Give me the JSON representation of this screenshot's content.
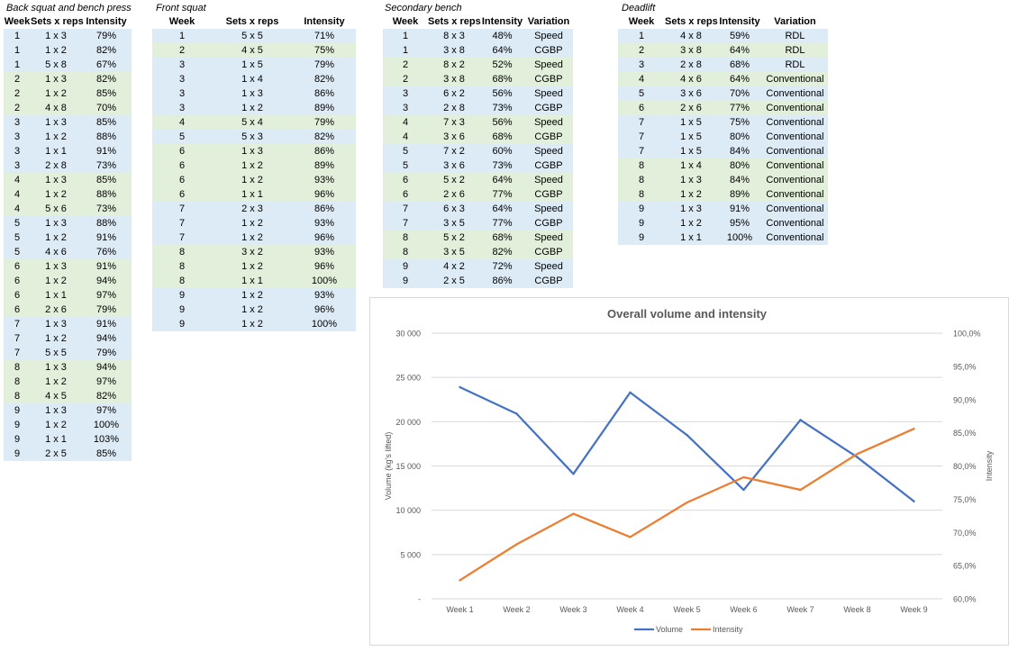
{
  "tables": {
    "back_squat": {
      "title": "Back squat and bench press",
      "headers": [
        "Week",
        "Sets x reps",
        "Intensity"
      ],
      "rows": [
        [
          "1",
          "1 x 3",
          "79%"
        ],
        [
          "1",
          "1 x 2",
          "82%"
        ],
        [
          "1",
          "5 x 8",
          "67%"
        ],
        [
          "2",
          "1 x 3",
          "82%"
        ],
        [
          "2",
          "1 x 2",
          "85%"
        ],
        [
          "2",
          "4 x 8",
          "70%"
        ],
        [
          "3",
          "1 x 3",
          "85%"
        ],
        [
          "3",
          "1 x 2",
          "88%"
        ],
        [
          "3",
          "1 x 1",
          "91%"
        ],
        [
          "3",
          "2 x 8",
          "73%"
        ],
        [
          "4",
          "1 x 3",
          "85%"
        ],
        [
          "4",
          "1 x 2",
          "88%"
        ],
        [
          "4",
          "5 x 6",
          "73%"
        ],
        [
          "5",
          "1 x 3",
          "88%"
        ],
        [
          "5",
          "1 x 2",
          "91%"
        ],
        [
          "5",
          "4 x 6",
          "76%"
        ],
        [
          "6",
          "1 x 3",
          "91%"
        ],
        [
          "6",
          "1 x 2",
          "94%"
        ],
        [
          "6",
          "1 x 1",
          "97%"
        ],
        [
          "6",
          "2 x 6",
          "79%"
        ],
        [
          "7",
          "1 x 3",
          "91%"
        ],
        [
          "7",
          "1 x 2",
          "94%"
        ],
        [
          "7",
          "5 x 5",
          "79%"
        ],
        [
          "8",
          "1 x 3",
          "94%"
        ],
        [
          "8",
          "1 x 2",
          "97%"
        ],
        [
          "8",
          "4 x 5",
          "82%"
        ],
        [
          "9",
          "1 x 3",
          "97%"
        ],
        [
          "9",
          "1 x 2",
          "100%"
        ],
        [
          "9",
          "1 x 1",
          "103%"
        ],
        [
          "9",
          "2 x 5",
          "85%"
        ]
      ]
    },
    "front_squat": {
      "title": "Front squat",
      "headers": [
        "Week",
        "Sets x reps",
        "Intensity"
      ],
      "rows": [
        [
          "1",
          "5 x 5",
          "71%"
        ],
        [
          "2",
          "4 x 5",
          "75%"
        ],
        [
          "3",
          "1 x 5",
          "79%"
        ],
        [
          "3",
          "1 x 4",
          "82%"
        ],
        [
          "3",
          "1 x 3",
          "86%"
        ],
        [
          "3",
          "1 x 2",
          "89%"
        ],
        [
          "4",
          "5 x 4",
          "79%"
        ],
        [
          "5",
          "5 x 3",
          "82%"
        ],
        [
          "6",
          "1 x 3",
          "86%"
        ],
        [
          "6",
          "1 x 2",
          "89%"
        ],
        [
          "6",
          "1 x 2",
          "93%"
        ],
        [
          "6",
          "1 x 1",
          "96%"
        ],
        [
          "7",
          "2 x 3",
          "86%"
        ],
        [
          "7",
          "1 x 2",
          "93%"
        ],
        [
          "7",
          "1 x 2",
          "96%"
        ],
        [
          "8",
          "3 x 2",
          "93%"
        ],
        [
          "8",
          "1 x 2",
          "96%"
        ],
        [
          "8",
          "1 x 1",
          "100%"
        ],
        [
          "9",
          "1 x 2",
          "93%"
        ],
        [
          "9",
          "1 x 2",
          "96%"
        ],
        [
          "9",
          "1 x 2",
          "100%"
        ]
      ]
    },
    "secondary_bench": {
      "title": "Secondary bench",
      "headers": [
        "Week",
        "Sets x reps",
        "Intensity",
        "Variation"
      ],
      "rows": [
        [
          "1",
          "8 x 3",
          "48%",
          "Speed"
        ],
        [
          "1",
          "3 x 8",
          "64%",
          "CGBP"
        ],
        [
          "2",
          "8 x 2",
          "52%",
          "Speed"
        ],
        [
          "2",
          "3 x 8",
          "68%",
          "CGBP"
        ],
        [
          "3",
          "6 x 2",
          "56%",
          "Speed"
        ],
        [
          "3",
          "2 x 8",
          "73%",
          "CGBP"
        ],
        [
          "4",
          "7 x 3",
          "56%",
          "Speed"
        ],
        [
          "4",
          "3 x 6",
          "68%",
          "CGBP"
        ],
        [
          "5",
          "7 x 2",
          "60%",
          "Speed"
        ],
        [
          "5",
          "3 x 6",
          "73%",
          "CGBP"
        ],
        [
          "6",
          "5 x 2",
          "64%",
          "Speed"
        ],
        [
          "6",
          "2 x 6",
          "77%",
          "CGBP"
        ],
        [
          "7",
          "6 x 3",
          "64%",
          "Speed"
        ],
        [
          "7",
          "3 x 5",
          "77%",
          "CGBP"
        ],
        [
          "8",
          "5 x 2",
          "68%",
          "Speed"
        ],
        [
          "8",
          "3 x 5",
          "82%",
          "CGBP"
        ],
        [
          "9",
          "4 x 2",
          "72%",
          "Speed"
        ],
        [
          "9",
          "2 x 5",
          "86%",
          "CGBP"
        ]
      ]
    },
    "deadlift": {
      "title": "Deadlift",
      "headers": [
        "Week",
        "Sets x reps",
        "Intensity",
        "Variation"
      ],
      "rows": [
        [
          "1",
          "4 x 8",
          "59%",
          "RDL"
        ],
        [
          "2",
          "3 x 8",
          "64%",
          "RDL"
        ],
        [
          "3",
          "2 x 8",
          "68%",
          "RDL"
        ],
        [
          "4",
          "4 x 6",
          "64%",
          "Conventional"
        ],
        [
          "5",
          "3 x 6",
          "70%",
          "Conventional"
        ],
        [
          "6",
          "2 x 6",
          "77%",
          "Conventional"
        ],
        [
          "7",
          "1 x 5",
          "75%",
          "Conventional"
        ],
        [
          "7",
          "1 x 5",
          "80%",
          "Conventional"
        ],
        [
          "7",
          "1 x 5",
          "84%",
          "Conventional"
        ],
        [
          "8",
          "1 x 4",
          "80%",
          "Conventional"
        ],
        [
          "8",
          "1 x 3",
          "84%",
          "Conventional"
        ],
        [
          "8",
          "1 x 2",
          "89%",
          "Conventional"
        ],
        [
          "9",
          "1 x 3",
          "91%",
          "Conventional"
        ],
        [
          "9",
          "1 x 2",
          "95%",
          "Conventional"
        ],
        [
          "9",
          "1 x 1",
          "100%",
          "Conventional"
        ]
      ]
    }
  },
  "chart_data": {
    "type": "line",
    "title": "Overall volume and intensity",
    "categories": [
      "Week 1",
      "Week 2",
      "Week 3",
      "Week 4",
      "Week 5",
      "Week 6",
      "Week 7",
      "Week 8",
      "Week 9"
    ],
    "series": [
      {
        "name": "Volume",
        "axis": "left",
        "color": "#4472c4",
        "values": [
          23900,
          20900,
          14100,
          23300,
          18500,
          12300,
          20200,
          16000,
          11000
        ]
      },
      {
        "name": "Intensity",
        "axis": "right",
        "color": "#ed7d31",
        "values": [
          62.8,
          68.2,
          72.8,
          69.3,
          74.5,
          78.3,
          76.4,
          81.8,
          85.6
        ]
      }
    ],
    "ylabel": "Volume (kg's lifted)",
    "ylabel_right": "Intensity",
    "ylim": [
      0,
      30000
    ],
    "ylim_right": [
      60,
      100
    ],
    "yticks": [
      "-",
      "5 000",
      "10 000",
      "15 000",
      "20 000",
      "25 000",
      "30 000"
    ],
    "yticks_right": [
      "60,0%",
      "65,0%",
      "70,0%",
      "75,0%",
      "80,0%",
      "85,0%",
      "90,0%",
      "95,0%",
      "100,0%"
    ],
    "grid": true,
    "legend": "bottom"
  }
}
